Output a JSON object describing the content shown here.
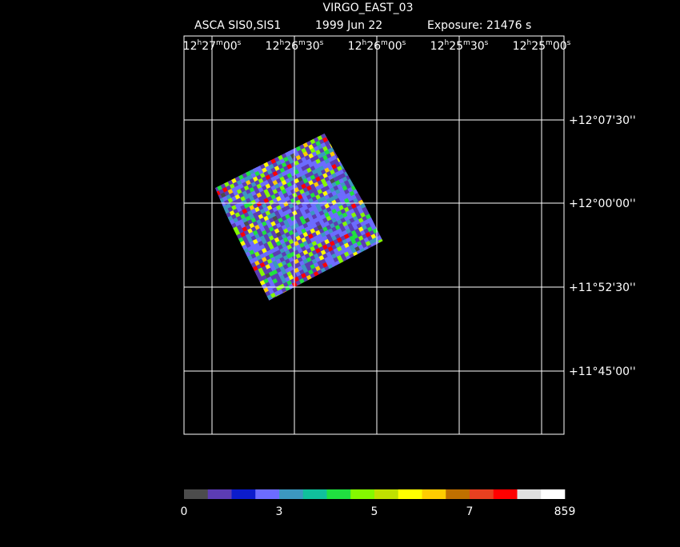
{
  "header": {
    "title": "VIRGO_EAST_03",
    "instrument": "ASCA SIS0,SIS1",
    "date": "1999 Jun 22",
    "exposure": "Exposure: 21476 s"
  },
  "ra_labels": [
    [
      "12",
      "h",
      "27",
      "m",
      "00",
      "s"
    ],
    [
      "12",
      "h",
      "26",
      "m",
      "30",
      "s"
    ],
    [
      "12",
      "h",
      "26",
      "m",
      "00",
      "s"
    ],
    [
      "12",
      "h",
      "25",
      "m",
      "30",
      "s"
    ],
    [
      "12",
      "h",
      "25",
      "m",
      "00",
      "s"
    ]
  ],
  "dec_labels": [
    "+12°07'30''",
    "+12°00'00''",
    "+11°52'30''",
    "+11°45'00''"
  ],
  "colorbar": {
    "colors": [
      "#4c4c4c",
      "#5c3cb4",
      "#0c1ccc",
      "#6c6cff",
      "#3c98c0",
      "#10c09c",
      "#20e040",
      "#84f800",
      "#c0e000",
      "#ffff00",
      "#ffcc00",
      "#c07000",
      "#e84020",
      "#ff0000",
      "#e0e0e0",
      "#ffffff"
    ],
    "labels": [
      "0",
      "3",
      "5",
      "7",
      "859"
    ]
  }
}
